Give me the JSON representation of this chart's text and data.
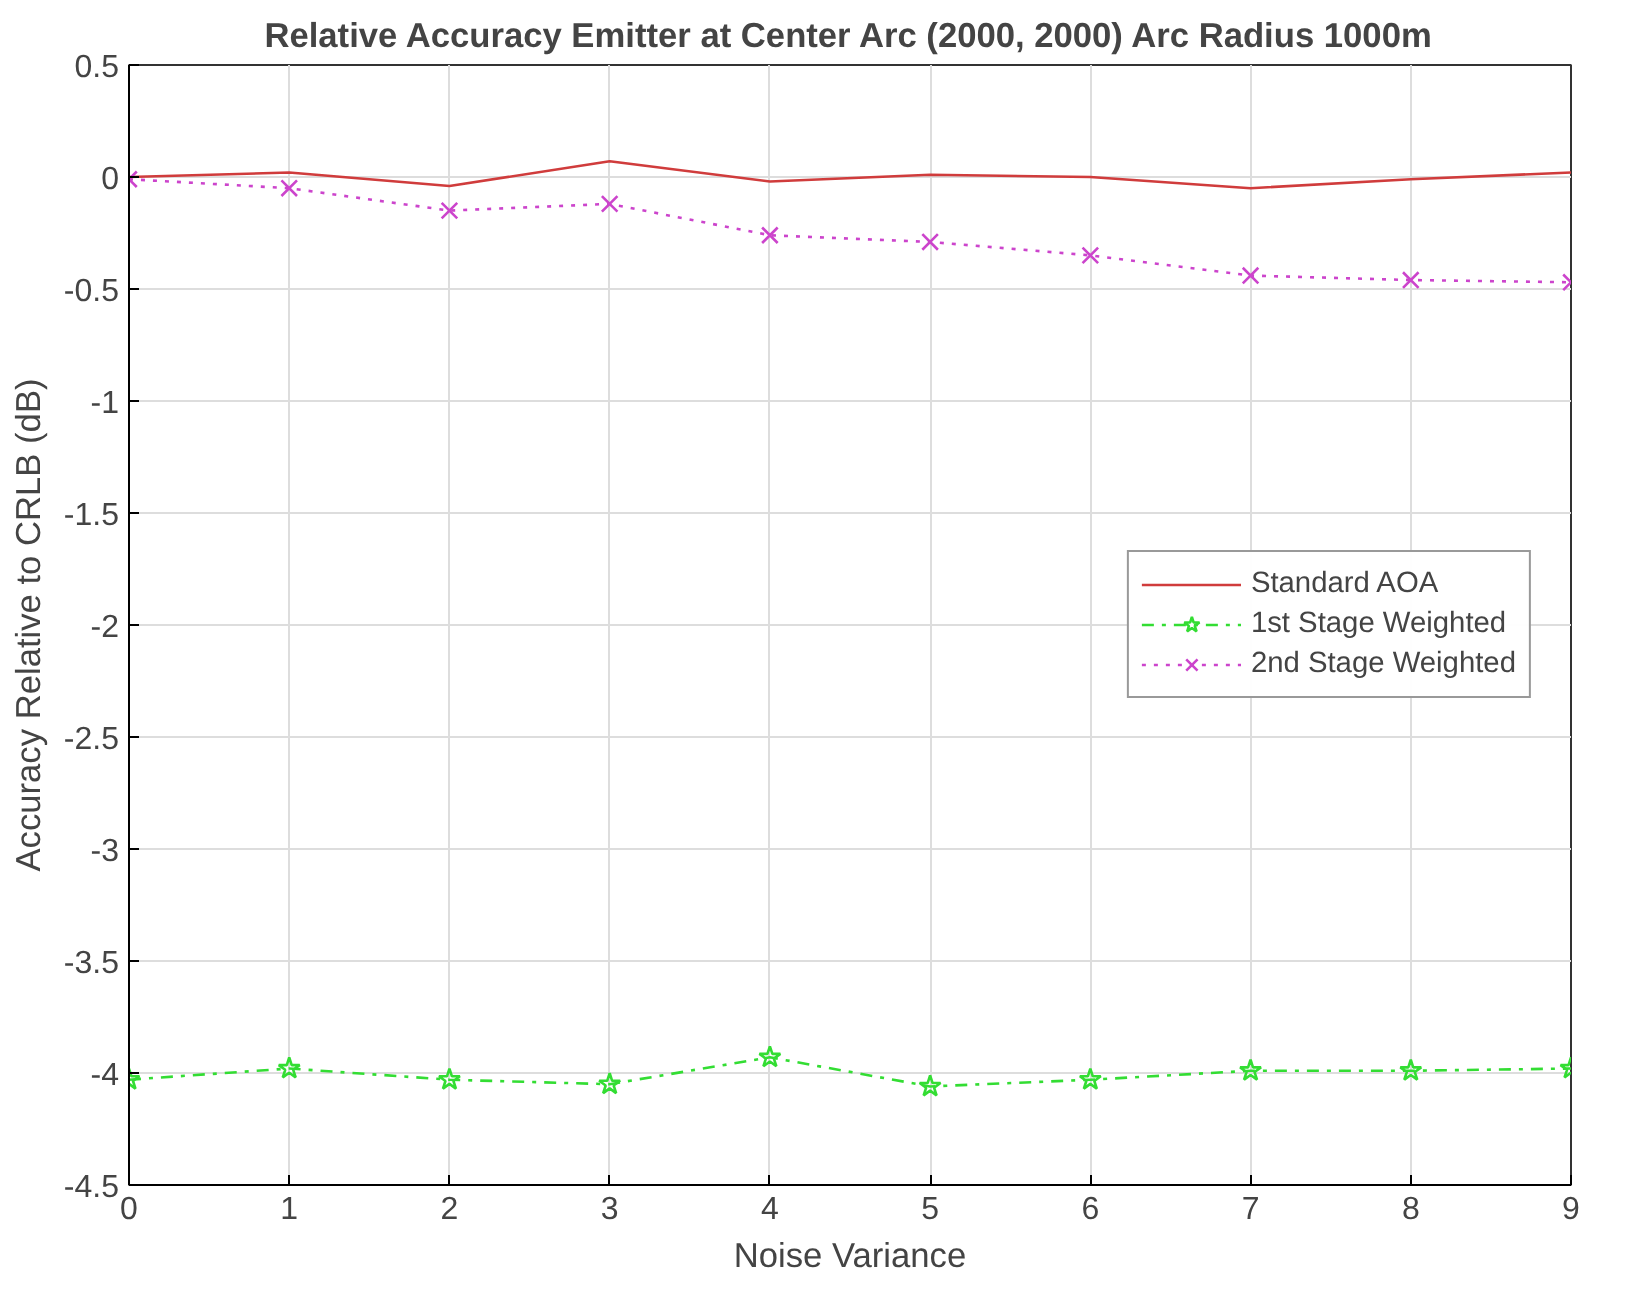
{
  "chart_data": {
    "type": "line",
    "title": "Relative Accuracy Emitter at Center Arc (2000, 2000) Arc Radius 1000m",
    "xlabel": "Noise Variance",
    "ylabel": "Accuracy Relative to CRLB (dB)",
    "x": [
      0,
      1,
      2,
      3,
      4,
      5,
      6,
      7,
      8,
      9
    ],
    "series": [
      {
        "name": "Standard AOA",
        "color": "#d03c3c",
        "marker": "none",
        "line_style": "solid",
        "values": [
          0,
          0.02,
          -0.04,
          0.07,
          -0.02,
          0.01,
          0,
          -0.05,
          -0.01,
          0.02
        ]
      },
      {
        "name": "1st Stage Weighted",
        "color": "#33dd33",
        "marker": "star",
        "line_style": "dashdot",
        "values": [
          -4.03,
          -3.98,
          -4.03,
          -4.05,
          -3.93,
          -4.06,
          -4.03,
          -3.99,
          -3.99,
          -3.98
        ]
      },
      {
        "name": "2nd Stage Weighted",
        "color": "#cc44cc",
        "marker": "cross",
        "line_style": "dotted",
        "values": [
          -0.01,
          -0.05,
          -0.15,
          -0.12,
          -0.26,
          -0.29,
          -0.35,
          -0.44,
          -0.46,
          -0.47
        ]
      }
    ],
    "xlim": [
      0,
      9
    ],
    "ylim": [
      -4.5,
      0.5
    ],
    "xticks": [
      0,
      1,
      2,
      3,
      4,
      5,
      6,
      7,
      8,
      9
    ],
    "yticks": [
      -4.5,
      -4,
      -3.5,
      -3,
      -2.5,
      -2,
      -1.5,
      -1,
      -0.5,
      0,
      0.5
    ],
    "grid": true,
    "legend": "right"
  }
}
